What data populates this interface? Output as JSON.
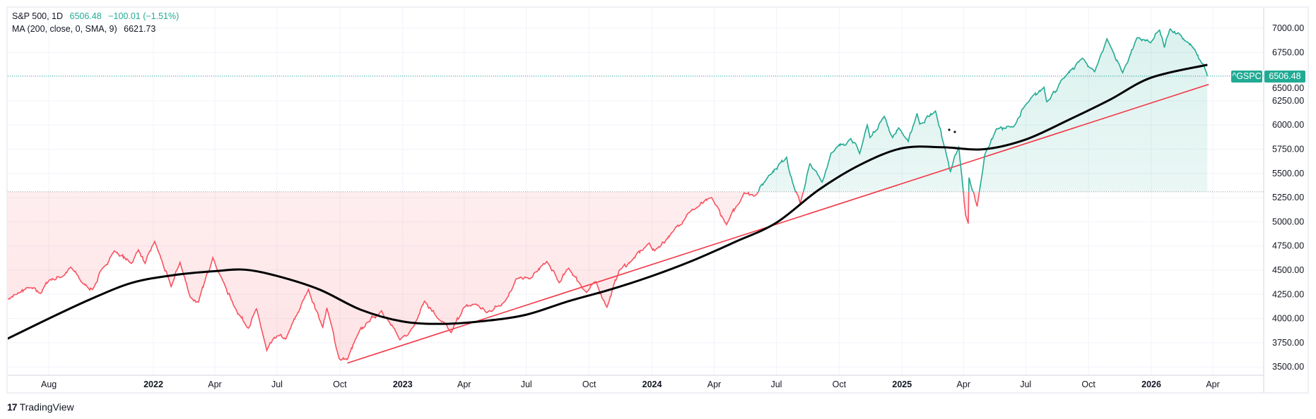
{
  "legend": {
    "symbol": "S&P 500, 1D",
    "last": "6506.48",
    "change": "−100.01 (−1.51%)",
    "ma_label": "MA (200, close, 0, SMA, 9)",
    "ma_value": "6621.73"
  },
  "price_tag": {
    "symbol": "^GSPC",
    "value": "6506.48"
  },
  "branding": {
    "name": "TradingView"
  },
  "colors": {
    "up": "#22ab94",
    "down": "#f7525f",
    "ma": "#000000",
    "trend": "#f23645",
    "grid": "#f0f3fa"
  },
  "chart_data": {
    "type": "line",
    "title": "S&P 500, 1D",
    "style": "baseline",
    "baseline_value": 5310,
    "ylim": [
      3400,
      7130
    ],
    "y_ticks": [
      "3500.00",
      "3750.00",
      "4000.00",
      "4250.00",
      "4500.00",
      "4750.00",
      "5000.00",
      "5250.00",
      "5500.00",
      "5750.00",
      "6000.00",
      "6250.00",
      "6500.00",
      "6750.00",
      "7000.00"
    ],
    "x_ticks": [
      {
        "date": "2021-08-01",
        "label": "Aug",
        "year": false
      },
      {
        "date": "2022-01-01",
        "label": "2022",
        "year": true
      },
      {
        "date": "2022-04-01",
        "label": "Apr",
        "year": false
      },
      {
        "date": "2022-07-01",
        "label": "Jul",
        "year": false
      },
      {
        "date": "2022-10-01",
        "label": "Oct",
        "year": false
      },
      {
        "date": "2023-01-01",
        "label": "2023",
        "year": true
      },
      {
        "date": "2023-04-01",
        "label": "Apr",
        "year": false
      },
      {
        "date": "2023-07-01",
        "label": "Jul",
        "year": false
      },
      {
        "date": "2023-10-01",
        "label": "Oct",
        "year": false
      },
      {
        "date": "2024-01-01",
        "label": "2024",
        "year": true
      },
      {
        "date": "2024-04-01",
        "label": "Apr",
        "year": false
      },
      {
        "date": "2024-07-01",
        "label": "Jul",
        "year": false
      },
      {
        "date": "2024-10-01",
        "label": "Oct",
        "year": false
      },
      {
        "date": "2025-01-01",
        "label": "2025",
        "year": true
      },
      {
        "date": "2025-04-01",
        "label": "Apr",
        "year": false
      },
      {
        "date": "2025-07-01",
        "label": "Jul",
        "year": false
      },
      {
        "date": "2025-10-01",
        "label": "Oct",
        "year": false
      },
      {
        "date": "2026-01-01",
        "label": "2026",
        "year": true
      },
      {
        "date": "2026-04-01",
        "label": "Apr",
        "year": false
      }
    ],
    "series": [
      {
        "name": "^GSPC close",
        "points": [
          [
            "2021-06-01",
            4200
          ],
          [
            "2021-06-15",
            4250
          ],
          [
            "2021-07-01",
            4320
          ],
          [
            "2021-07-20",
            4260
          ],
          [
            "2021-08-01",
            4400
          ],
          [
            "2021-08-20",
            4430
          ],
          [
            "2021-09-02",
            4530
          ],
          [
            "2021-09-20",
            4360
          ],
          [
            "2021-10-04",
            4300
          ],
          [
            "2021-10-20",
            4530
          ],
          [
            "2021-11-05",
            4700
          ],
          [
            "2021-11-30",
            4570
          ],
          [
            "2021-12-10",
            4710
          ],
          [
            "2021-12-20",
            4570
          ],
          [
            "2022-01-03",
            4796
          ],
          [
            "2022-01-27",
            4330
          ],
          [
            "2022-02-09",
            4580
          ],
          [
            "2022-02-24",
            4220
          ],
          [
            "2022-03-08",
            4170
          ],
          [
            "2022-03-29",
            4630
          ],
          [
            "2022-04-12",
            4400
          ],
          [
            "2022-04-29",
            4130
          ],
          [
            "2022-05-20",
            3900
          ],
          [
            "2022-06-01",
            4100
          ],
          [
            "2022-06-16",
            3670
          ],
          [
            "2022-07-01",
            3820
          ],
          [
            "2022-07-14",
            3790
          ],
          [
            "2022-08-16",
            4300
          ],
          [
            "2022-09-06",
            3910
          ],
          [
            "2022-09-12",
            4110
          ],
          [
            "2022-09-30",
            3585
          ],
          [
            "2022-10-12",
            3577
          ],
          [
            "2022-10-27",
            3830
          ],
          [
            "2022-11-10",
            3960
          ],
          [
            "2022-12-01",
            4080
          ],
          [
            "2022-12-28",
            3780
          ],
          [
            "2023-01-18",
            3930
          ],
          [
            "2023-02-02",
            4180
          ],
          [
            "2023-02-23",
            3990
          ],
          [
            "2023-03-13",
            3855
          ],
          [
            "2023-03-31",
            4110
          ],
          [
            "2023-04-18",
            4150
          ],
          [
            "2023-05-04",
            4060
          ],
          [
            "2023-05-31",
            4180
          ],
          [
            "2023-06-16",
            4410
          ],
          [
            "2023-07-06",
            4410
          ],
          [
            "2023-07-31",
            4590
          ],
          [
            "2023-08-18",
            4370
          ],
          [
            "2023-09-01",
            4520
          ],
          [
            "2023-09-27",
            4270
          ],
          [
            "2023-10-11",
            4380
          ],
          [
            "2023-10-27",
            4117
          ],
          [
            "2023-11-14",
            4500
          ],
          [
            "2023-12-01",
            4590
          ],
          [
            "2023-12-28",
            4780
          ],
          [
            "2024-01-05",
            4700
          ],
          [
            "2024-02-01",
            4900
          ],
          [
            "2024-02-23",
            5090
          ],
          [
            "2024-03-28",
            5250
          ],
          [
            "2024-04-19",
            4970
          ],
          [
            "2024-05-15",
            5300
          ],
          [
            "2024-05-31",
            5270
          ],
          [
            "2024-06-20",
            5480
          ],
          [
            "2024-07-16",
            5667
          ],
          [
            "2024-07-25",
            5400
          ],
          [
            "2024-08-05",
            5186
          ],
          [
            "2024-08-19",
            5600
          ],
          [
            "2024-09-06",
            5410
          ],
          [
            "2024-09-19",
            5710
          ],
          [
            "2024-10-18",
            5860
          ],
          [
            "2024-10-31",
            5705
          ],
          [
            "2024-11-11",
            6000
          ],
          [
            "2024-11-15",
            5870
          ],
          [
            "2024-12-06",
            6090
          ],
          [
            "2024-12-18",
            5870
          ],
          [
            "2024-12-27",
            5970
          ],
          [
            "2025-01-10",
            5830
          ],
          [
            "2025-01-23",
            6120
          ],
          [
            "2025-01-27",
            6010
          ],
          [
            "2025-02-19",
            6144
          ],
          [
            "2025-03-10",
            5610
          ],
          [
            "2025-03-13",
            5520
          ],
          [
            "2025-03-25",
            5770
          ],
          [
            "2025-04-04",
            5070
          ],
          [
            "2025-04-08",
            4982
          ],
          [
            "2025-04-09",
            5456
          ],
          [
            "2025-04-21",
            5158
          ],
          [
            "2025-05-02",
            5690
          ],
          [
            "2025-05-19",
            5960
          ],
          [
            "2025-06-13",
            5980
          ],
          [
            "2025-06-30",
            6200
          ],
          [
            "2025-07-28",
            6390
          ],
          [
            "2025-08-01",
            6240
          ],
          [
            "2025-08-28",
            6500
          ],
          [
            "2025-09-22",
            6690
          ],
          [
            "2025-10-10",
            6550
          ],
          [
            "2025-10-28",
            6890
          ],
          [
            "2025-11-20",
            6540
          ],
          [
            "2025-12-11",
            6900
          ],
          [
            "2025-12-31",
            6850
          ],
          [
            "2026-01-13",
            6980
          ],
          [
            "2026-01-20",
            6800
          ],
          [
            "2026-01-28",
            6990
          ],
          [
            "2026-02-10",
            6950
          ],
          [
            "2026-02-24",
            6850
          ],
          [
            "2026-03-05",
            6780
          ],
          [
            "2026-03-12",
            6680
          ],
          [
            "2026-03-19",
            6620
          ],
          [
            "2026-03-24",
            6506.48
          ]
        ]
      },
      {
        "name": "MA (200, close, 0, SMA, 9)",
        "points": [
          [
            "2021-06-01",
            3790
          ],
          [
            "2021-08-01",
            4000
          ],
          [
            "2021-10-01",
            4200
          ],
          [
            "2021-12-01",
            4370
          ],
          [
            "2022-02-01",
            4450
          ],
          [
            "2022-04-01",
            4490
          ],
          [
            "2022-05-15",
            4505
          ],
          [
            "2022-07-01",
            4440
          ],
          [
            "2022-09-01",
            4300
          ],
          [
            "2022-11-01",
            4090
          ],
          [
            "2023-01-01",
            3970
          ],
          [
            "2023-03-01",
            3945
          ],
          [
            "2023-05-01",
            3975
          ],
          [
            "2023-07-01",
            4040
          ],
          [
            "2023-09-01",
            4180
          ],
          [
            "2023-11-01",
            4300
          ],
          [
            "2024-01-01",
            4440
          ],
          [
            "2024-03-01",
            4600
          ],
          [
            "2024-05-01",
            4790
          ],
          [
            "2024-07-01",
            4990
          ],
          [
            "2024-09-01",
            5330
          ],
          [
            "2024-11-01",
            5590
          ],
          [
            "2025-01-01",
            5760
          ],
          [
            "2025-03-01",
            5770
          ],
          [
            "2025-05-01",
            5750
          ],
          [
            "2025-07-01",
            5850
          ],
          [
            "2025-09-01",
            6050
          ],
          [
            "2025-11-01",
            6260
          ],
          [
            "2026-01-01",
            6490
          ],
          [
            "2026-03-24",
            6621.73
          ]
        ]
      },
      {
        "name": "Trend line",
        "points": [
          [
            "2022-10-12",
            3540
          ],
          [
            "2026-03-26",
            6420
          ]
        ]
      }
    ]
  }
}
